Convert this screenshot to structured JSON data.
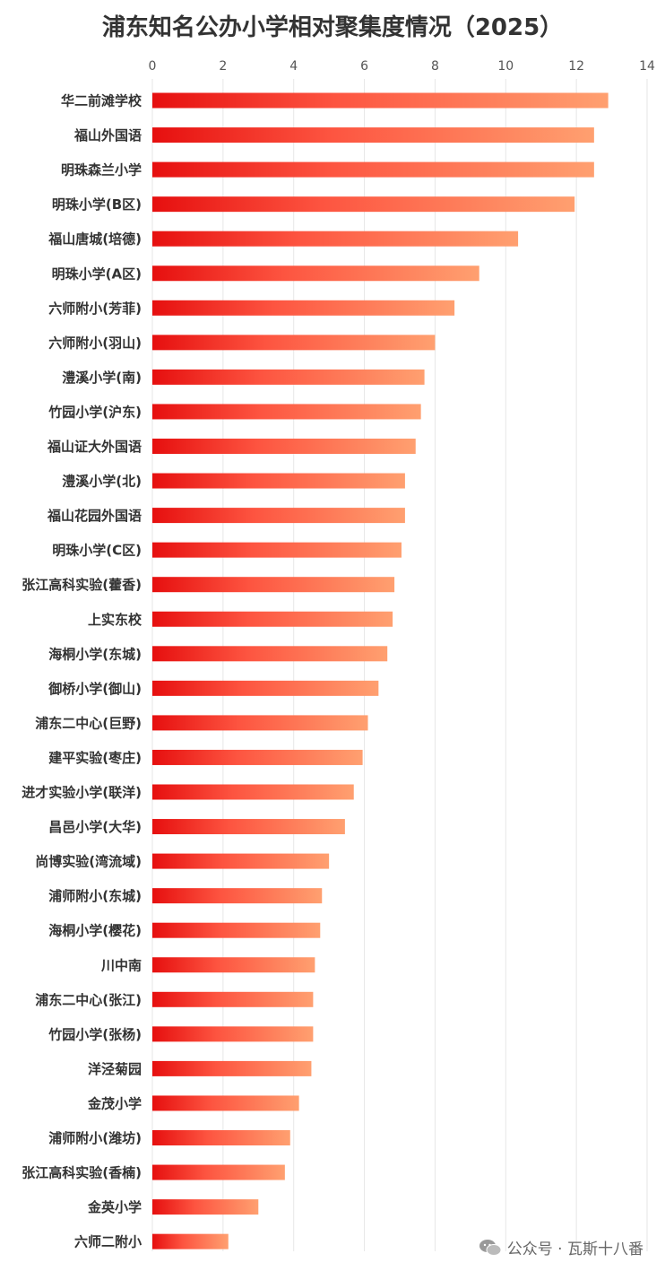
{
  "title": "浦东知名公办小学相对聚集度情况（2025）",
  "watermark": {
    "text": "公众号 · 瓦斯十八番",
    "icon": "wechat-icon"
  },
  "colors": {
    "bar_start": "#e60f0f",
    "bar_mid": "#fd5440",
    "bar_end": "#ffa070",
    "grid": "#e6e6e6"
  },
  "chart_data": {
    "type": "bar",
    "orientation": "horizontal",
    "title": "浦东知名公办小学相对聚集度情况（2025）",
    "xlim": [
      0,
      14
    ],
    "xticks": [
      0,
      2,
      4,
      6,
      8,
      10,
      12,
      14
    ],
    "x_axis_position": "top",
    "grid": true,
    "categories": [
      "华二前滩学校",
      "福山外国语",
      "明珠森兰小学",
      "明珠小学(B区)",
      "福山唐城(培德)",
      "明珠小学(A区)",
      "六师附小(芳菲)",
      "六师附小(羽山)",
      "澧溪小学(南)",
      "竹园小学(沪东)",
      "福山证大外国语",
      "澧溪小学(北)",
      "福山花园外国语",
      "明珠小学(C区)",
      "张江高科实验(藿香)",
      "上实东校",
      "海桐小学(东城)",
      "御桥小学(御山)",
      "浦东二中心(巨野)",
      "建平实验(枣庄)",
      "进才实验小学(联洋)",
      "昌邑小学(大华)",
      "尚博实验(湾流域)",
      "浦师附小(东城)",
      "海桐小学(樱花)",
      "川中南",
      "浦东二中心(张江)",
      "竹园小学(张杨)",
      "洋泾菊园",
      "金茂小学",
      "浦师附小(潍坊)",
      "张江高科实验(香楠)",
      "金英小学",
      "六师二附小"
    ],
    "values": [
      12.9,
      12.5,
      12.5,
      11.95,
      10.35,
      9.25,
      8.55,
      8.0,
      7.7,
      7.6,
      7.45,
      7.15,
      7.15,
      7.05,
      6.85,
      6.8,
      6.65,
      6.4,
      6.1,
      5.95,
      5.7,
      5.45,
      5.0,
      4.8,
      4.75,
      4.6,
      4.55,
      4.55,
      4.5,
      4.15,
      3.9,
      3.75,
      3.0,
      2.15
    ]
  }
}
